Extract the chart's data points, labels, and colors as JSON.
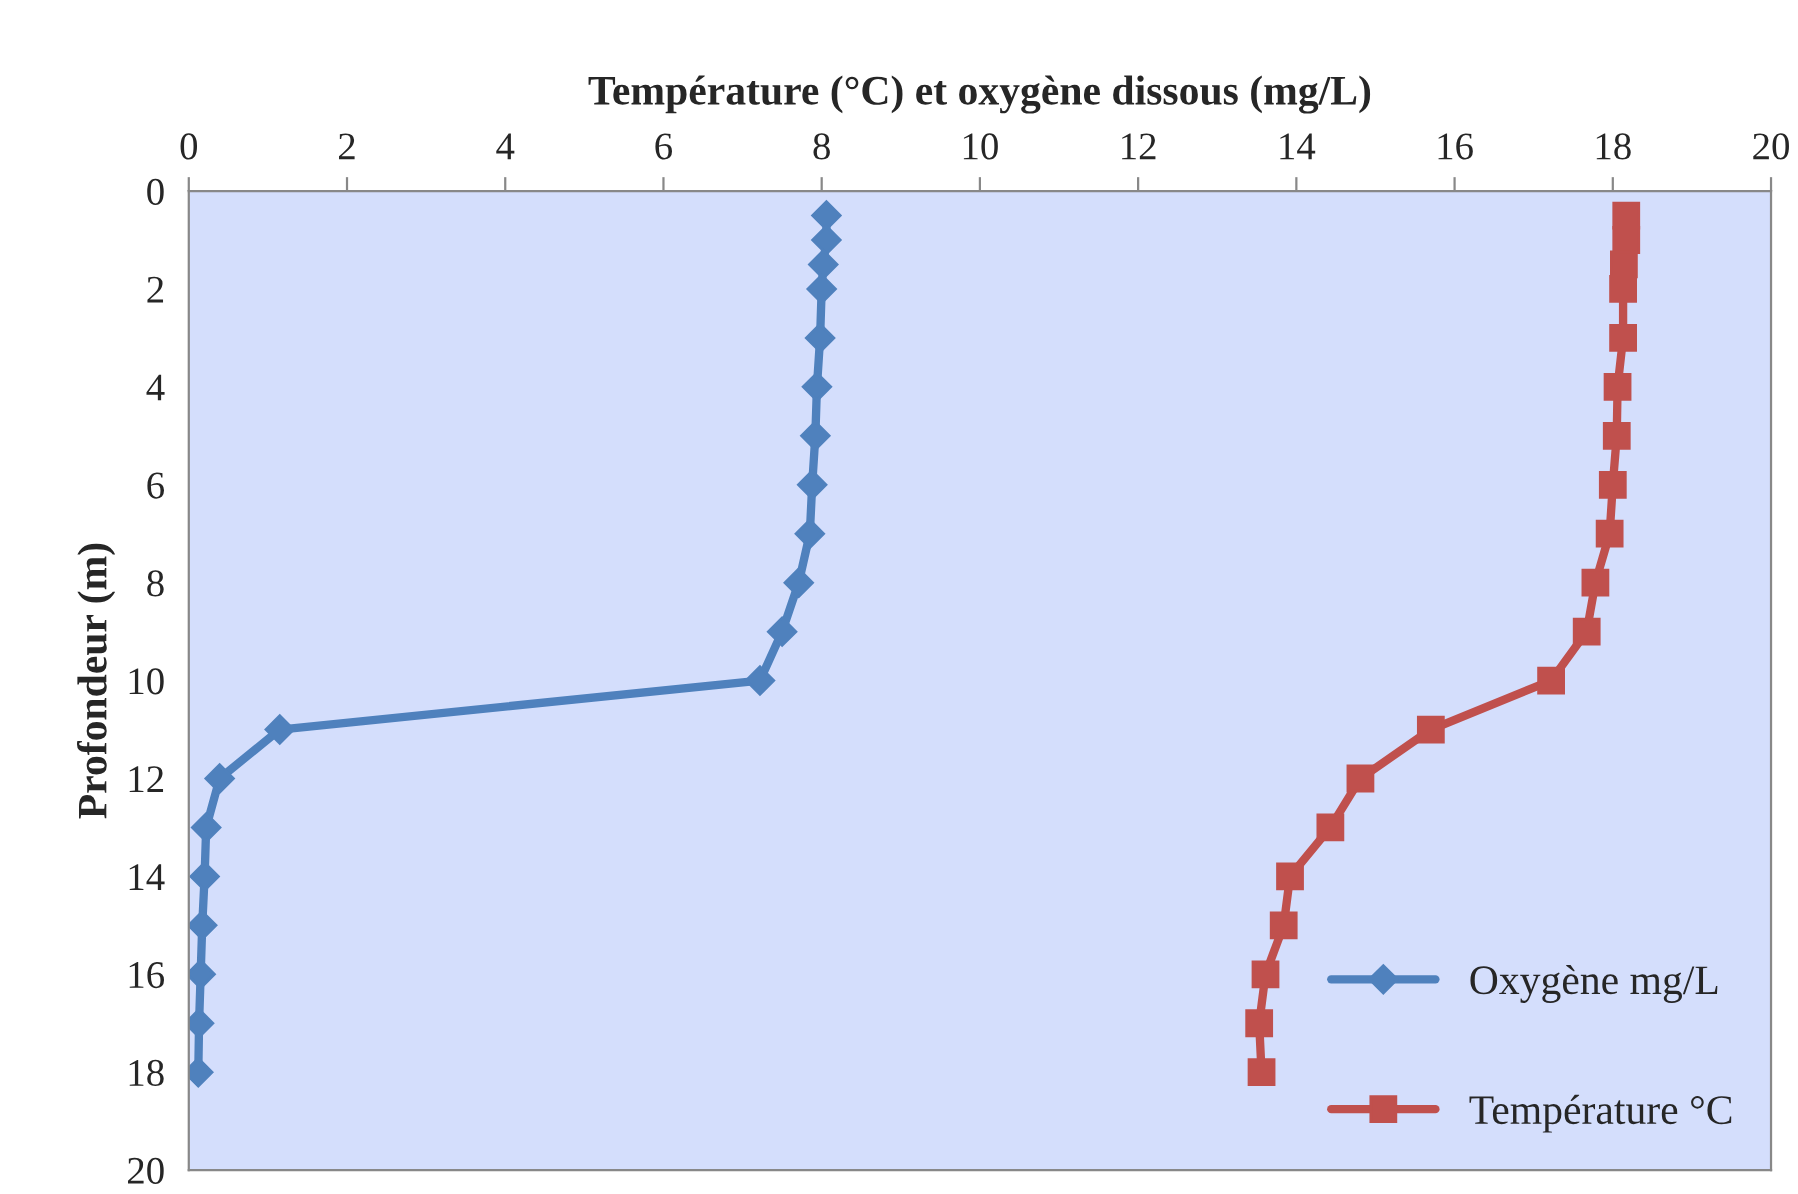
{
  "chart_data": {
    "type": "line",
    "xlabel": "Température (°C) et oxygène dissous (mg/L)",
    "ylabel": "Profondeur (m)",
    "xlim": [
      0,
      20
    ],
    "xticks": [
      0,
      2,
      4,
      6,
      8,
      10,
      12,
      14,
      16,
      18,
      20
    ],
    "ylim": [
      20,
      0
    ],
    "yticks": [
      0,
      2,
      4,
      6,
      8,
      10,
      12,
      14,
      16,
      18,
      20
    ],
    "grid": false,
    "legend": "bottom right",
    "series": [
      {
        "name": "Oxygène mg/L",
        "color": "#4f81bd",
        "marker": "diamond",
        "x": [
          8.06,
          8.06,
          8.02,
          8.0,
          7.98,
          7.94,
          7.92,
          7.88,
          7.85,
          7.71,
          7.5,
          7.22,
          1.15,
          0.39,
          0.22,
          0.2,
          0.17,
          0.15,
          0.13,
          0.12
        ],
        "values": [
          0.5,
          1,
          1.5,
          2,
          3,
          4,
          5,
          6,
          7,
          8,
          9,
          10,
          11,
          12,
          13,
          14,
          15,
          16,
          17,
          18
        ]
      },
      {
        "name": "Température °C",
        "color": "#c0504d",
        "marker": "square",
        "x": [
          18.17,
          18.17,
          18.14,
          18.13,
          18.13,
          18.06,
          18.05,
          18.0,
          17.96,
          17.78,
          17.67,
          17.22,
          15.7,
          14.81,
          14.43,
          13.92,
          13.84,
          13.61,
          13.53,
          13.56
        ],
        "values": [
          0.5,
          1,
          1.5,
          2,
          3,
          4,
          5,
          6,
          7,
          8,
          9,
          10,
          11,
          12,
          13,
          14,
          15,
          16,
          17,
          18
        ]
      }
    ]
  }
}
